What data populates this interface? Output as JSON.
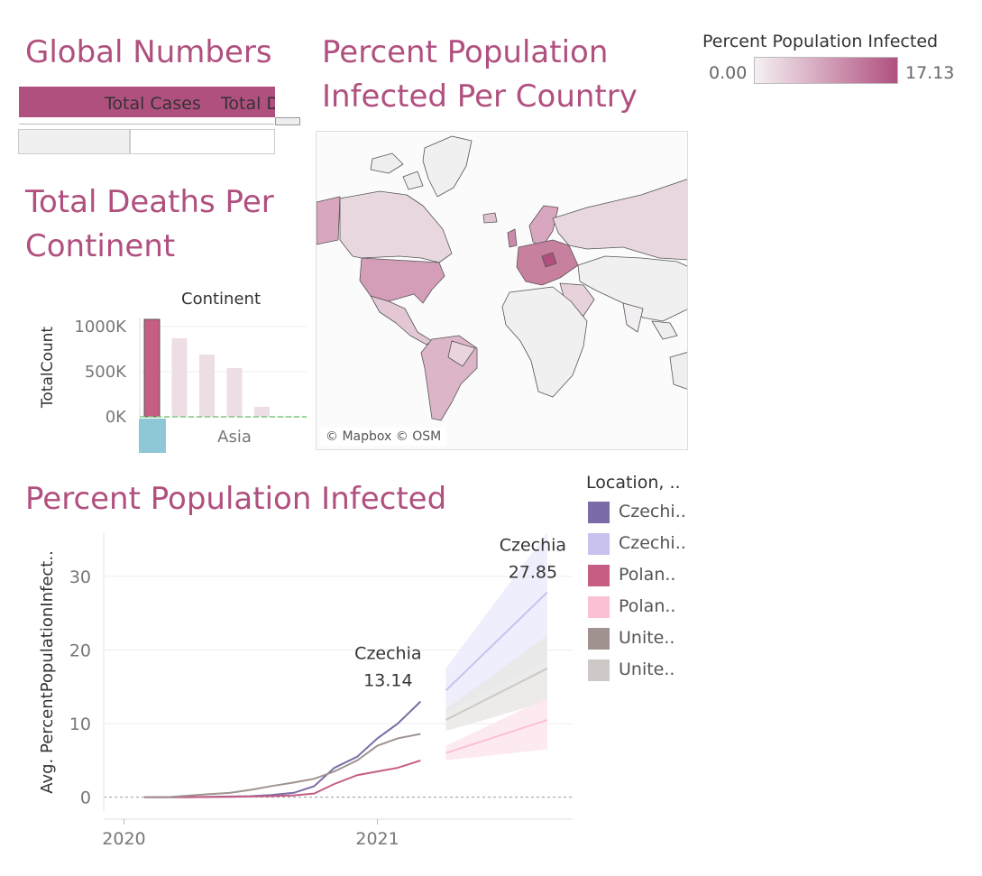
{
  "global_numbers": {
    "title": "Global Numbers",
    "columns": [
      "Total Cases",
      "Total D"
    ]
  },
  "map": {
    "title_line1": "Percent Population",
    "title_line2": "Infected Per Country",
    "attribution": "© Mapbox © OSM",
    "legend": {
      "title": "Percent Population Infected",
      "min": "0.00",
      "max": "17.13",
      "color_low": "#f5f0f3",
      "color_high": "#b0507f"
    }
  },
  "deaths": {
    "title_line1": "Total Deaths Per",
    "title_line2": "Continent"
  },
  "infected": {
    "title": "Percent Population Infected",
    "legend": {
      "title": "Location, ..",
      "items": [
        {
          "label": "Czechi..",
          "color": "#7b6ca8"
        },
        {
          "label": "Czechi..",
          "color": "#c9c2ee"
        },
        {
          "label": "Polan..",
          "color": "#c55d85"
        },
        {
          "label": "Polan..",
          "color": "#fcc0d4"
        },
        {
          "label": "Unite..",
          "color": "#a0928f"
        },
        {
          "label": "Unite..",
          "color": "#cec8c6"
        }
      ]
    }
  },
  "chart_data": [
    {
      "type": "bar",
      "title": "",
      "header": "Continent",
      "ylabel": "TotalCount",
      "yticks": [
        "1000K",
        "500K",
        "0K"
      ],
      "ylim": [
        0,
        1100000
      ],
      "values": [
        1080000,
        870000,
        690000,
        540000,
        110000,
        2000
      ],
      "colors": [
        "#c55d85",
        "#eddde5",
        "#eddde5",
        "#eddde5",
        "#eddde5",
        "#eddde5"
      ],
      "bottom_label": "Asia"
    },
    {
      "type": "line",
      "title": "Percent Population Infected",
      "ylabel": "Avg. PercentPopulationInfect..",
      "xlabel": "",
      "xticks": [
        {
          "label": "2020",
          "x": 2020.0
        },
        {
          "label": "2021",
          "x": 2021.0
        }
      ],
      "xlim": [
        2019.92,
        2021.77
      ],
      "ylim": [
        -2,
        36
      ],
      "yticks": [
        0,
        10,
        20,
        30
      ],
      "series": [
        {
          "name": "Czechia",
          "color": "#7b6ca8",
          "x": [
            2020.08,
            2020.17,
            2020.25,
            2020.33,
            2020.42,
            2020.5,
            2020.58,
            2020.67,
            2020.75,
            2020.83,
            2020.92,
            2021.0,
            2021.08,
            2021.17
          ],
          "y": [
            0,
            0,
            0,
            0.05,
            0.1,
            0.15,
            0.3,
            0.6,
            1.5,
            4,
            5.5,
            8,
            10,
            13
          ]
        },
        {
          "name": "Poland",
          "color": "#c55d85",
          "x": [
            2020.08,
            2020.17,
            2020.25,
            2020.33,
            2020.42,
            2020.5,
            2020.58,
            2020.67,
            2020.75,
            2020.83,
            2020.92,
            2021.0,
            2021.08,
            2021.17
          ],
          "y": [
            0,
            0,
            0,
            0.02,
            0.05,
            0.1,
            0.15,
            0.25,
            0.5,
            1.8,
            3,
            3.5,
            4,
            5
          ]
        },
        {
          "name": "United States",
          "color": "#a0928f",
          "x": [
            2020.08,
            2020.17,
            2020.25,
            2020.33,
            2020.42,
            2020.5,
            2020.58,
            2020.67,
            2020.75,
            2020.83,
            2020.92,
            2021.0,
            2021.08,
            2021.17
          ],
          "y": [
            0,
            0,
            0.2,
            0.4,
            0.6,
            1,
            1.5,
            2,
            2.5,
            3.5,
            5,
            7,
            8,
            8.6
          ]
        }
      ],
      "forecasts": [
        {
          "name": "Czechia",
          "color": "#c9c2ee",
          "band": "#ecebfb",
          "x": [
            2021.27,
            2021.67
          ],
          "y": [
            14.5,
            27.85
          ],
          "lower": [
            11.5,
            18.5
          ],
          "upper": [
            17.5,
            36
          ]
        },
        {
          "name": "United States",
          "color": "#cec8c6",
          "band": "#e9e7e6",
          "x": [
            2021.27,
            2021.67
          ],
          "y": [
            10.5,
            17.5
          ],
          "lower": [
            9,
            13
          ],
          "upper": [
            12,
            22
          ]
        },
        {
          "name": "Poland",
          "color": "#fcc0d4",
          "band": "#fde6ee",
          "x": [
            2021.27,
            2021.67
          ],
          "y": [
            6,
            10.5
          ],
          "lower": [
            5,
            6.5
          ],
          "upper": [
            7,
            13.5
          ]
        }
      ],
      "annotations": [
        {
          "label": "Czechia",
          "value": "13.14",
          "x": 2021.17,
          "y": 13.14
        },
        {
          "label": "Czechia",
          "value": "27.85",
          "x": 2021.67,
          "y": 27.85
        }
      ]
    }
  ]
}
